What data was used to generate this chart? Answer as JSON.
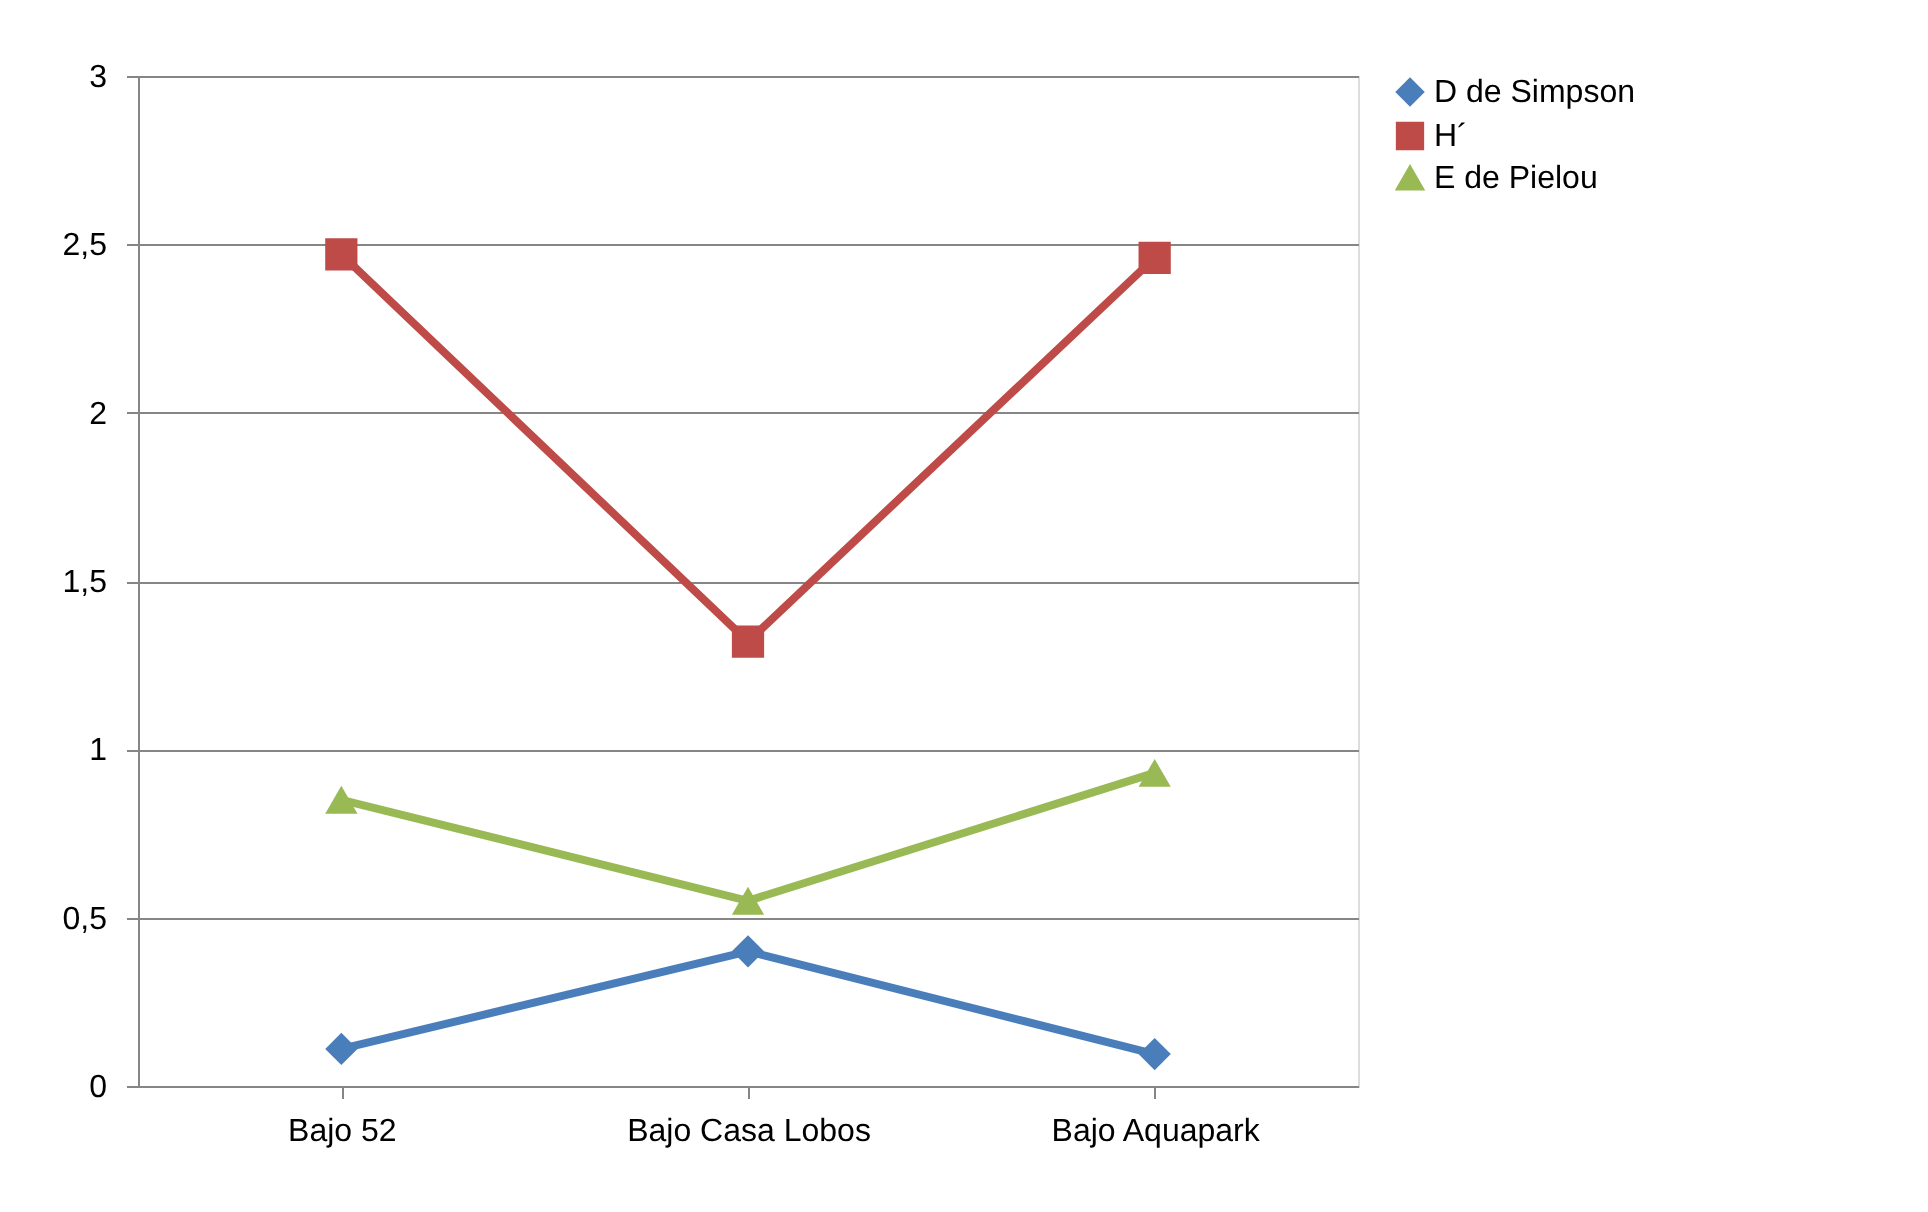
{
  "chart_data": {
    "type": "line",
    "categories": [
      "Bajo 52",
      "Bajo Casa Lobos",
      "Bajo Aquapark"
    ],
    "series": [
      {
        "name": "D de Simpson",
        "color": "#4a7ebb",
        "marker": "diamond",
        "values": [
          0.11,
          0.4,
          0.095
        ]
      },
      {
        "name": "H´",
        "color": "#be4b48",
        "marker": "square",
        "values": [
          2.47,
          1.32,
          2.46
        ]
      },
      {
        "name": "E de Pielou",
        "color": "#98b954",
        "marker": "triangle",
        "values": [
          0.85,
          0.55,
          0.93
        ]
      }
    ],
    "ylim": [
      0,
      3
    ],
    "yticks": [
      0,
      {
        "value": 0.5,
        "label": "0,5"
      },
      1,
      {
        "value": 1.5,
        "label": "1,5"
      },
      2,
      {
        "value": 2.5,
        "label": "2,5"
      },
      3
    ],
    "grid": "y",
    "legend": "right",
    "line_style": "solid"
  }
}
